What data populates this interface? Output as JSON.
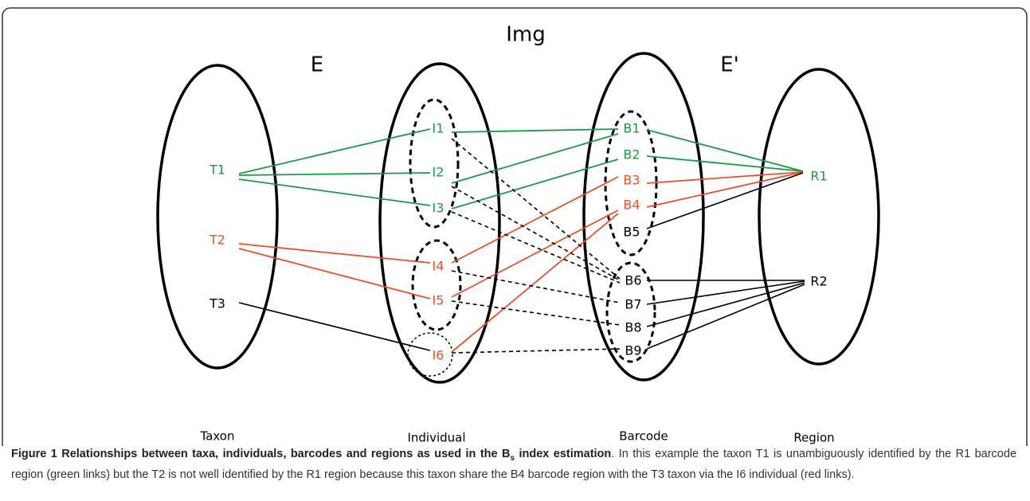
{
  "diagram": {
    "title": "Img",
    "left_label": "E",
    "right_label": "E'",
    "groups": [
      "Taxon",
      "Individual",
      "Barcode",
      "Region"
    ],
    "nodes": [
      "T1",
      "T2",
      "T3",
      "I1",
      "I2",
      "I3",
      "I4",
      "I5",
      "I6",
      "B1",
      "B2",
      "B3",
      "B4",
      "B5",
      "B6",
      "B7",
      "B8",
      "B9",
      "R1",
      "R2"
    ]
  },
  "caption": {
    "label": "Figure 1",
    "title": "Relationships between taxa, individuals, barcodes and regions as used in the B",
    "title_sub": "s",
    "title_end": " index estimation",
    "text": ". In this example the taxon T1 is unambiguously identified by the R1 barcode region (green links) but the T2 is not well identified by the R1 region because this taxon share the B4 barcode region with the T3 taxon via the I6 individual (red links)."
  }
}
